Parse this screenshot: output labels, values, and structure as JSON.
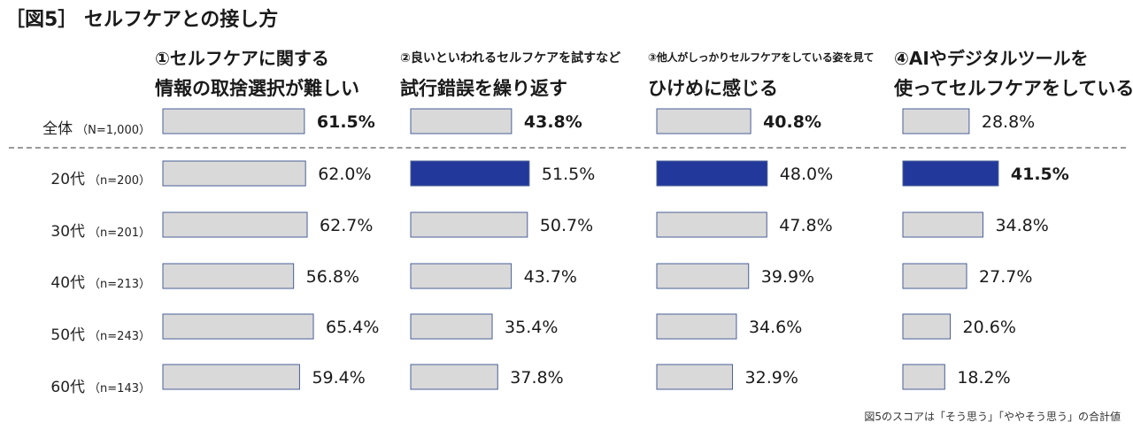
{
  "title": "［図5］ セルフケアとの接し方",
  "footnote": "図5のスコアは「そう思う」「ややそう思う」の合計値",
  "colors": {
    "bar": "#d9d9d9",
    "bar_stroke": "#4a5f97",
    "highlight": "#22389a",
    "divider": "#999999"
  },
  "chart_data": {
    "type": "bar",
    "orientation": "horizontal",
    "categories": [
      {
        "label": "全体",
        "n": "（N=1,000）"
      },
      {
        "label": "20代",
        "n": "（n=200）"
      },
      {
        "label": "30代",
        "n": "（n=201）"
      },
      {
        "label": "40代",
        "n": "（n=213）"
      },
      {
        "label": "50代",
        "n": "（n=243）"
      },
      {
        "label": "60代",
        "n": "（n=143）"
      }
    ],
    "series": [
      {
        "line1": "①セルフケアに関する",
        "line2": "情報の取捨選択が難しい",
        "values": [
          61.5,
          62.0,
          62.7,
          56.8,
          65.4,
          59.4
        ],
        "labels": [
          "61.5%",
          "62.0%",
          "62.7%",
          "56.8%",
          "65.4%",
          "59.4%"
        ],
        "highlight_index": null
      },
      {
        "line1": "②良いといわれるセルフケアを試すなど",
        "line2": "試行錯誤を繰り返す",
        "values": [
          43.8,
          51.5,
          50.7,
          43.7,
          35.4,
          37.8
        ],
        "labels": [
          "43.8%",
          "51.5%",
          "50.7%",
          "43.7%",
          "35.4%",
          "37.8%"
        ],
        "highlight_index": 1
      },
      {
        "line1": "③他人がしっかりセルフケアをしている姿を見て",
        "line2": "ひけめに感じる",
        "values": [
          40.8,
          48.0,
          47.8,
          39.9,
          34.6,
          32.9
        ],
        "labels": [
          "40.8%",
          "48.0%",
          "47.8%",
          "39.9%",
          "34.6%",
          "32.9%"
        ],
        "highlight_index": 1
      },
      {
        "line1": "④AIやデジタルツールを",
        "line2": "使ってセルフケアをしている",
        "values": [
          28.8,
          41.5,
          34.8,
          27.7,
          20.6,
          18.2
        ],
        "labels": [
          "28.8%",
          "41.5%",
          "34.8%",
          "27.7%",
          "20.6%",
          "18.2%"
        ],
        "highlight_index": 1
      }
    ],
    "bold_value_labels": [
      [
        0
      ],
      [
        0
      ],
      [
        0
      ],
      [
        1
      ]
    ],
    "xlim": [
      0,
      100
    ],
    "grid": false,
    "legend": "none"
  }
}
